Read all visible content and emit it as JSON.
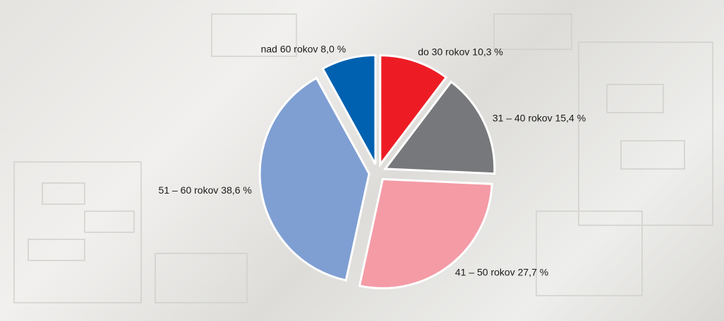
{
  "chart_data": {
    "type": "pie",
    "categories": [
      "do 30 rokov",
      "31 – 40 rokov",
      "41 – 50 rokov",
      "51 – 60 rokov",
      "nad 60 rokov"
    ],
    "values": [
      10.3,
      15.4,
      27.7,
      38.6,
      8.0
    ],
    "value_labels": [
      "10,3 %",
      "15,4 %",
      "27,7 %",
      "38,6 %",
      "8,0 %"
    ],
    "colors": [
      "#ed1c24",
      "#77787b",
      "#f49ba6",
      "#7f9fd3",
      "#0061b0"
    ]
  }
}
